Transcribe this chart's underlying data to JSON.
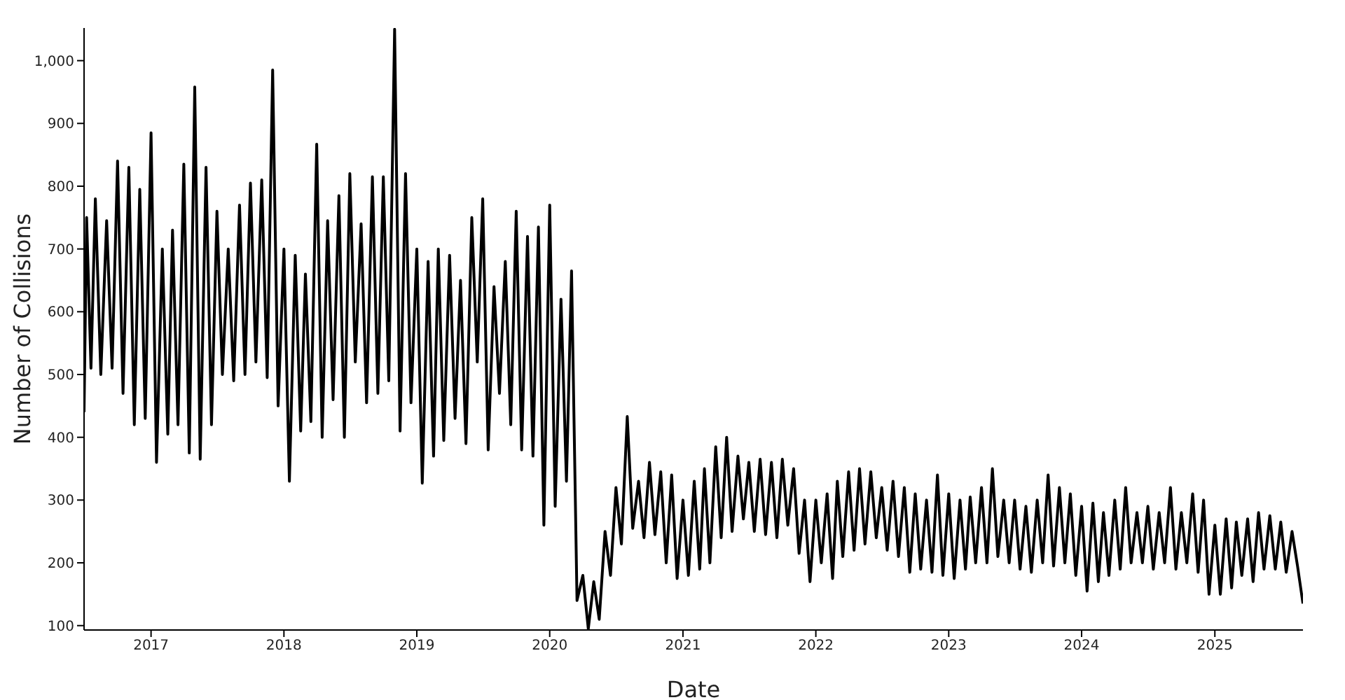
{
  "chart_data": {
    "type": "line",
    "xlabel": "Date",
    "ylabel": "Number of Collisions",
    "marker": "none",
    "line_style": "solid",
    "xlim": [
      "2016-07-01",
      "2025-08-31"
    ],
    "xticks": [
      "2017",
      "2018",
      "2019",
      "2020",
      "2021",
      "2022",
      "2023",
      "2024",
      "2025"
    ],
    "ylim": [
      93,
      1052
    ],
    "yticks": [
      100,
      200,
      300,
      400,
      500,
      600,
      700,
      800,
      900,
      {
        "value": 1000,
        "label": "1,000"
      }
    ],
    "series": [
      {
        "color": "#000000",
        "x": [
          "2016-07-01",
          "2016-07-08",
          "2016-07-20",
          "2016-08-01",
          "2016-08-16",
          "2016-09-01",
          "2016-09-16",
          "2016-10-01",
          "2016-10-16",
          "2016-11-01",
          "2016-11-16",
          "2016-12-01",
          "2016-12-16",
          "2017-01-01",
          "2017-01-16",
          "2017-02-01",
          "2017-02-16",
          "2017-03-01",
          "2017-03-16",
          "2017-04-01",
          "2017-04-16",
          "2017-05-01",
          "2017-05-16",
          "2017-06-01",
          "2017-06-16",
          "2017-07-01",
          "2017-07-16",
          "2017-08-01",
          "2017-08-16",
          "2017-09-01",
          "2017-09-16",
          "2017-10-01",
          "2017-10-16",
          "2017-11-01",
          "2017-11-16",
          "2017-12-01",
          "2017-12-16",
          "2018-01-01",
          "2018-01-16",
          "2018-02-01",
          "2018-02-16",
          "2018-03-01",
          "2018-03-16",
          "2018-04-01",
          "2018-04-16",
          "2018-05-01",
          "2018-05-16",
          "2018-06-01",
          "2018-06-16",
          "2018-07-01",
          "2018-07-16",
          "2018-08-01",
          "2018-08-16",
          "2018-09-01",
          "2018-09-16",
          "2018-10-01",
          "2018-10-16",
          "2018-11-01",
          "2018-11-16",
          "2018-12-01",
          "2018-12-16",
          "2019-01-01",
          "2019-01-16",
          "2019-02-01",
          "2019-02-16",
          "2019-03-01",
          "2019-03-16",
          "2019-04-01",
          "2019-04-16",
          "2019-05-01",
          "2019-05-16",
          "2019-06-01",
          "2019-06-16",
          "2019-07-01",
          "2019-07-16",
          "2019-08-01",
          "2019-08-16",
          "2019-09-01",
          "2019-09-16",
          "2019-10-01",
          "2019-10-16",
          "2019-11-01",
          "2019-11-16",
          "2019-12-01",
          "2019-12-16",
          "2020-01-01",
          "2020-01-16",
          "2020-02-01",
          "2020-02-16",
          "2020-03-01",
          "2020-03-16",
          "2020-04-01",
          "2020-04-16",
          "2020-05-01",
          "2020-05-16",
          "2020-06-01",
          "2020-06-16",
          "2020-07-01",
          "2020-07-16",
          "2020-08-01",
          "2020-08-16",
          "2020-09-01",
          "2020-09-16",
          "2020-10-01",
          "2020-10-16",
          "2020-11-01",
          "2020-11-16",
          "2020-12-01",
          "2020-12-16",
          "2021-01-01",
          "2021-01-16",
          "2021-02-01",
          "2021-02-16",
          "2021-03-01",
          "2021-03-16",
          "2021-04-01",
          "2021-04-16",
          "2021-05-01",
          "2021-05-16",
          "2021-06-01",
          "2021-06-16",
          "2021-07-01",
          "2021-07-16",
          "2021-08-01",
          "2021-08-16",
          "2021-09-01",
          "2021-09-16",
          "2021-10-01",
          "2021-10-16",
          "2021-11-01",
          "2021-11-16",
          "2021-12-01",
          "2021-12-16",
          "2022-01-01",
          "2022-01-16",
          "2022-02-01",
          "2022-02-16",
          "2022-03-01",
          "2022-03-16",
          "2022-04-01",
          "2022-04-16",
          "2022-05-01",
          "2022-05-16",
          "2022-06-01",
          "2022-06-16",
          "2022-07-01",
          "2022-07-16",
          "2022-08-01",
          "2022-08-16",
          "2022-09-01",
          "2022-09-16",
          "2022-10-01",
          "2022-10-16",
          "2022-11-01",
          "2022-11-16",
          "2022-12-01",
          "2022-12-16",
          "2023-01-01",
          "2023-01-16",
          "2023-02-01",
          "2023-02-16",
          "2023-03-01",
          "2023-03-16",
          "2023-04-01",
          "2023-04-16",
          "2023-05-01",
          "2023-05-16",
          "2023-06-01",
          "2023-06-16",
          "2023-07-01",
          "2023-07-16",
          "2023-08-01",
          "2023-08-16",
          "2023-09-01",
          "2023-09-16",
          "2023-10-01",
          "2023-10-16",
          "2023-11-01",
          "2023-11-16",
          "2023-12-01",
          "2023-12-16",
          "2024-01-01",
          "2024-01-16",
          "2024-02-01",
          "2024-02-16",
          "2024-03-01",
          "2024-03-16",
          "2024-04-01",
          "2024-04-16",
          "2024-05-01",
          "2024-05-16",
          "2024-06-01",
          "2024-06-16",
          "2024-07-01",
          "2024-07-16",
          "2024-08-01",
          "2024-08-16",
          "2024-09-01",
          "2024-09-16",
          "2024-10-01",
          "2024-10-16",
          "2024-11-01",
          "2024-11-16",
          "2024-12-01",
          "2024-12-16",
          "2025-01-01",
          "2025-01-16",
          "2025-02-01",
          "2025-02-16",
          "2025-03-01",
          "2025-03-16",
          "2025-04-01",
          "2025-04-16",
          "2025-05-01",
          "2025-05-16",
          "2025-06-01",
          "2025-06-16",
          "2025-07-01",
          "2025-07-16",
          "2025-08-01",
          "2025-08-16",
          "2025-08-31"
        ],
        "values": [
          440,
          750,
          510,
          780,
          500,
          745,
          510,
          840,
          470,
          830,
          420,
          795,
          430,
          885,
          360,
          700,
          405,
          730,
          420,
          835,
          375,
          958,
          365,
          830,
          420,
          760,
          500,
          700,
          490,
          770,
          500,
          805,
          520,
          810,
          495,
          985,
          450,
          700,
          330,
          690,
          410,
          660,
          425,
          867,
          400,
          745,
          460,
          785,
          400,
          820,
          520,
          740,
          455,
          815,
          470,
          815,
          490,
          1050,
          410,
          820,
          455,
          700,
          327,
          680,
          370,
          700,
          395,
          690,
          430,
          650,
          390,
          750,
          520,
          780,
          380,
          640,
          470,
          680,
          420,
          760,
          380,
          720,
          370,
          735,
          260,
          770,
          290,
          620,
          330,
          665,
          140,
          180,
          95,
          170,
          110,
          250,
          180,
          320,
          230,
          433,
          255,
          330,
          240,
          360,
          245,
          345,
          200,
          340,
          175,
          300,
          180,
          330,
          190,
          350,
          200,
          385,
          240,
          400,
          250,
          370,
          270,
          360,
          250,
          365,
          245,
          360,
          240,
          365,
          260,
          350,
          215,
          300,
          170,
          300,
          200,
          310,
          175,
          330,
          210,
          345,
          220,
          350,
          230,
          345,
          240,
          320,
          220,
          330,
          210,
          320,
          185,
          310,
          190,
          300,
          185,
          340,
          180,
          310,
          175,
          300,
          190,
          305,
          200,
          320,
          200,
          350,
          210,
          300,
          200,
          300,
          190,
          290,
          185,
          300,
          200,
          340,
          195,
          320,
          200,
          310,
          180,
          290,
          155,
          295,
          170,
          280,
          180,
          300,
          190,
          320,
          200,
          280,
          200,
          290,
          190,
          280,
          200,
          320,
          190,
          280,
          200,
          310,
          185,
          300,
          150,
          260,
          150,
          270,
          160,
          265,
          180,
          270,
          170,
          280,
          190,
          275,
          190,
          265,
          185,
          250,
          195,
          135
        ]
      }
    ]
  }
}
